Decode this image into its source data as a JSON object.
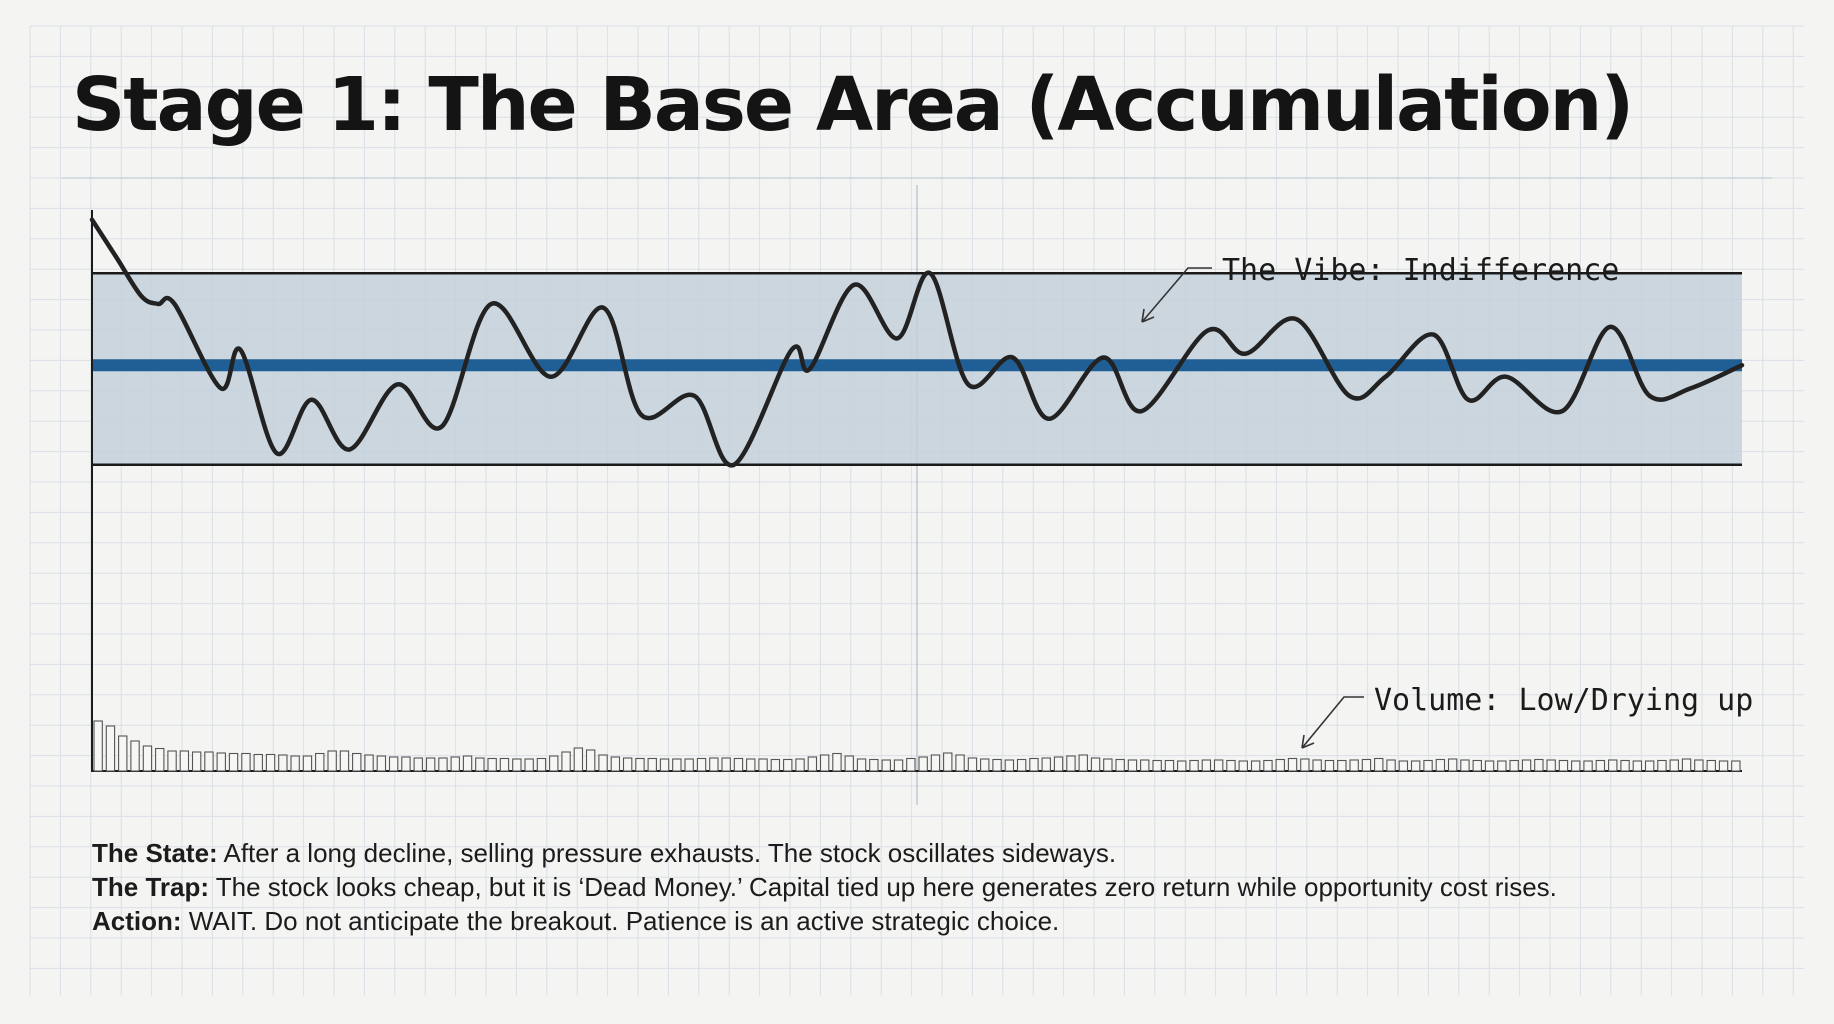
{
  "title": "Stage 1: The Base Area (Accumulation)",
  "colors": {
    "background": "#f4f4f2",
    "grid": "#d9e0e6",
    "range_fill": "#c3d0dc",
    "price_line": "#222222",
    "trend_line": "#1f5f95",
    "boundary": "#1a1a1a",
    "volume_bar": "#555555"
  },
  "chart_data": {
    "type": "line",
    "title": "",
    "xlabel": "",
    "ylabel": "",
    "grid": true,
    "xlim": [
      0,
      100
    ],
    "ylim": [
      0,
      100
    ],
    "range": {
      "upper": 84,
      "lower": 34
    },
    "trend": {
      "start": 60,
      "end": 60
    },
    "series": [
      {
        "x": [
          0,
          1.5,
          3,
          4,
          5,
          7.8,
          9,
          11.2,
          13.3,
          15.6,
          18.5,
          21.2,
          24.2,
          27.8,
          31,
          33.3,
          36.5,
          38.9,
          42.4,
          43.5,
          46.2,
          48.8,
          50.8,
          53.1,
          55.8,
          58,
          61.3,
          63.6,
          67.6,
          69.9,
          73,
          76.2,
          78.4,
          81.3,
          83.4,
          85.7,
          89.1,
          92,
          94.4,
          96.9,
          100
        ],
        "y": [
          98,
          88,
          78,
          76,
          76,
          54,
          64,
          37,
          51,
          38,
          55,
          44,
          76,
          57,
          75,
          47,
          52,
          34,
          64,
          59,
          81,
          67,
          84,
          55,
          62,
          46,
          62,
          48,
          69,
          63,
          72,
          52,
          57,
          68,
          51,
          57,
          48,
          70,
          52,
          54,
          60
        ]
      }
    ],
    "volume": {
      "values": [
        10,
        9,
        7,
        6,
        5,
        4.5,
        4,
        4,
        3.8,
        3.8,
        3.6,
        3.5,
        3.5,
        3.3,
        3.3,
        3.2,
        3,
        3,
        3.5,
        4,
        4,
        3.5,
        3.2,
        3,
        2.8,
        2.8,
        2.6,
        2.6,
        2.6,
        2.8,
        3,
        2.6,
        2.5,
        2.5,
        2.4,
        2.4,
        2.5,
        3,
        3.8,
        4.6,
        4.2,
        3.2,
        2.8,
        2.6,
        2.5,
        2.5,
        2.4,
        2.4,
        2.4,
        2.5,
        2.6,
        2.6,
        2.5,
        2.4,
        2.4,
        2.3,
        2.3,
        2.4,
        2.8,
        3.2,
        3.5,
        3,
        2.4,
        2.3,
        2.2,
        2.2,
        2.5,
        2.8,
        3.2,
        3.6,
        3.2,
        2.6,
        2.4,
        2.3,
        2.2,
        2.3,
        2.5,
        2.6,
        2.8,
        3,
        3.2,
        2.6,
        2.4,
        2.3,
        2.2,
        2.2,
        2.1,
        2.1,
        2,
        2.1,
        2.2,
        2.2,
        2.1,
        2,
        2,
        2.1,
        2.3,
        2.5,
        2.4,
        2.2,
        2.1,
        2.1,
        2.2,
        2.3,
        2.5,
        2.2,
        2,
        2,
        2.1,
        2.3,
        2.4,
        2.2,
        2.1,
        2,
        2,
        2.1,
        2.2,
        2.3,
        2.2,
        2.1,
        2,
        2,
        2.1,
        2.2,
        2.1,
        2,
        2,
        2.1,
        2.2,
        2.4,
        2.2,
        2.1,
        2,
        2
      ]
    },
    "annotations": [
      {
        "text": "The Vibe: Indifference"
      },
      {
        "text": "Volume: Low/Drying up"
      }
    ]
  },
  "description": [
    {
      "label": "The State:",
      "text": " After a long decline, selling pressure exhausts. The stock oscillates sideways."
    },
    {
      "label": "The Trap:",
      "text": " The stock looks cheap, but it is ‘Dead Money.’ Capital tied up here generates zero return while opportunity cost rises."
    },
    {
      "label": "Action:",
      "text": " WAIT. Do not anticipate the breakout. Patience is an active strategic choice."
    }
  ]
}
